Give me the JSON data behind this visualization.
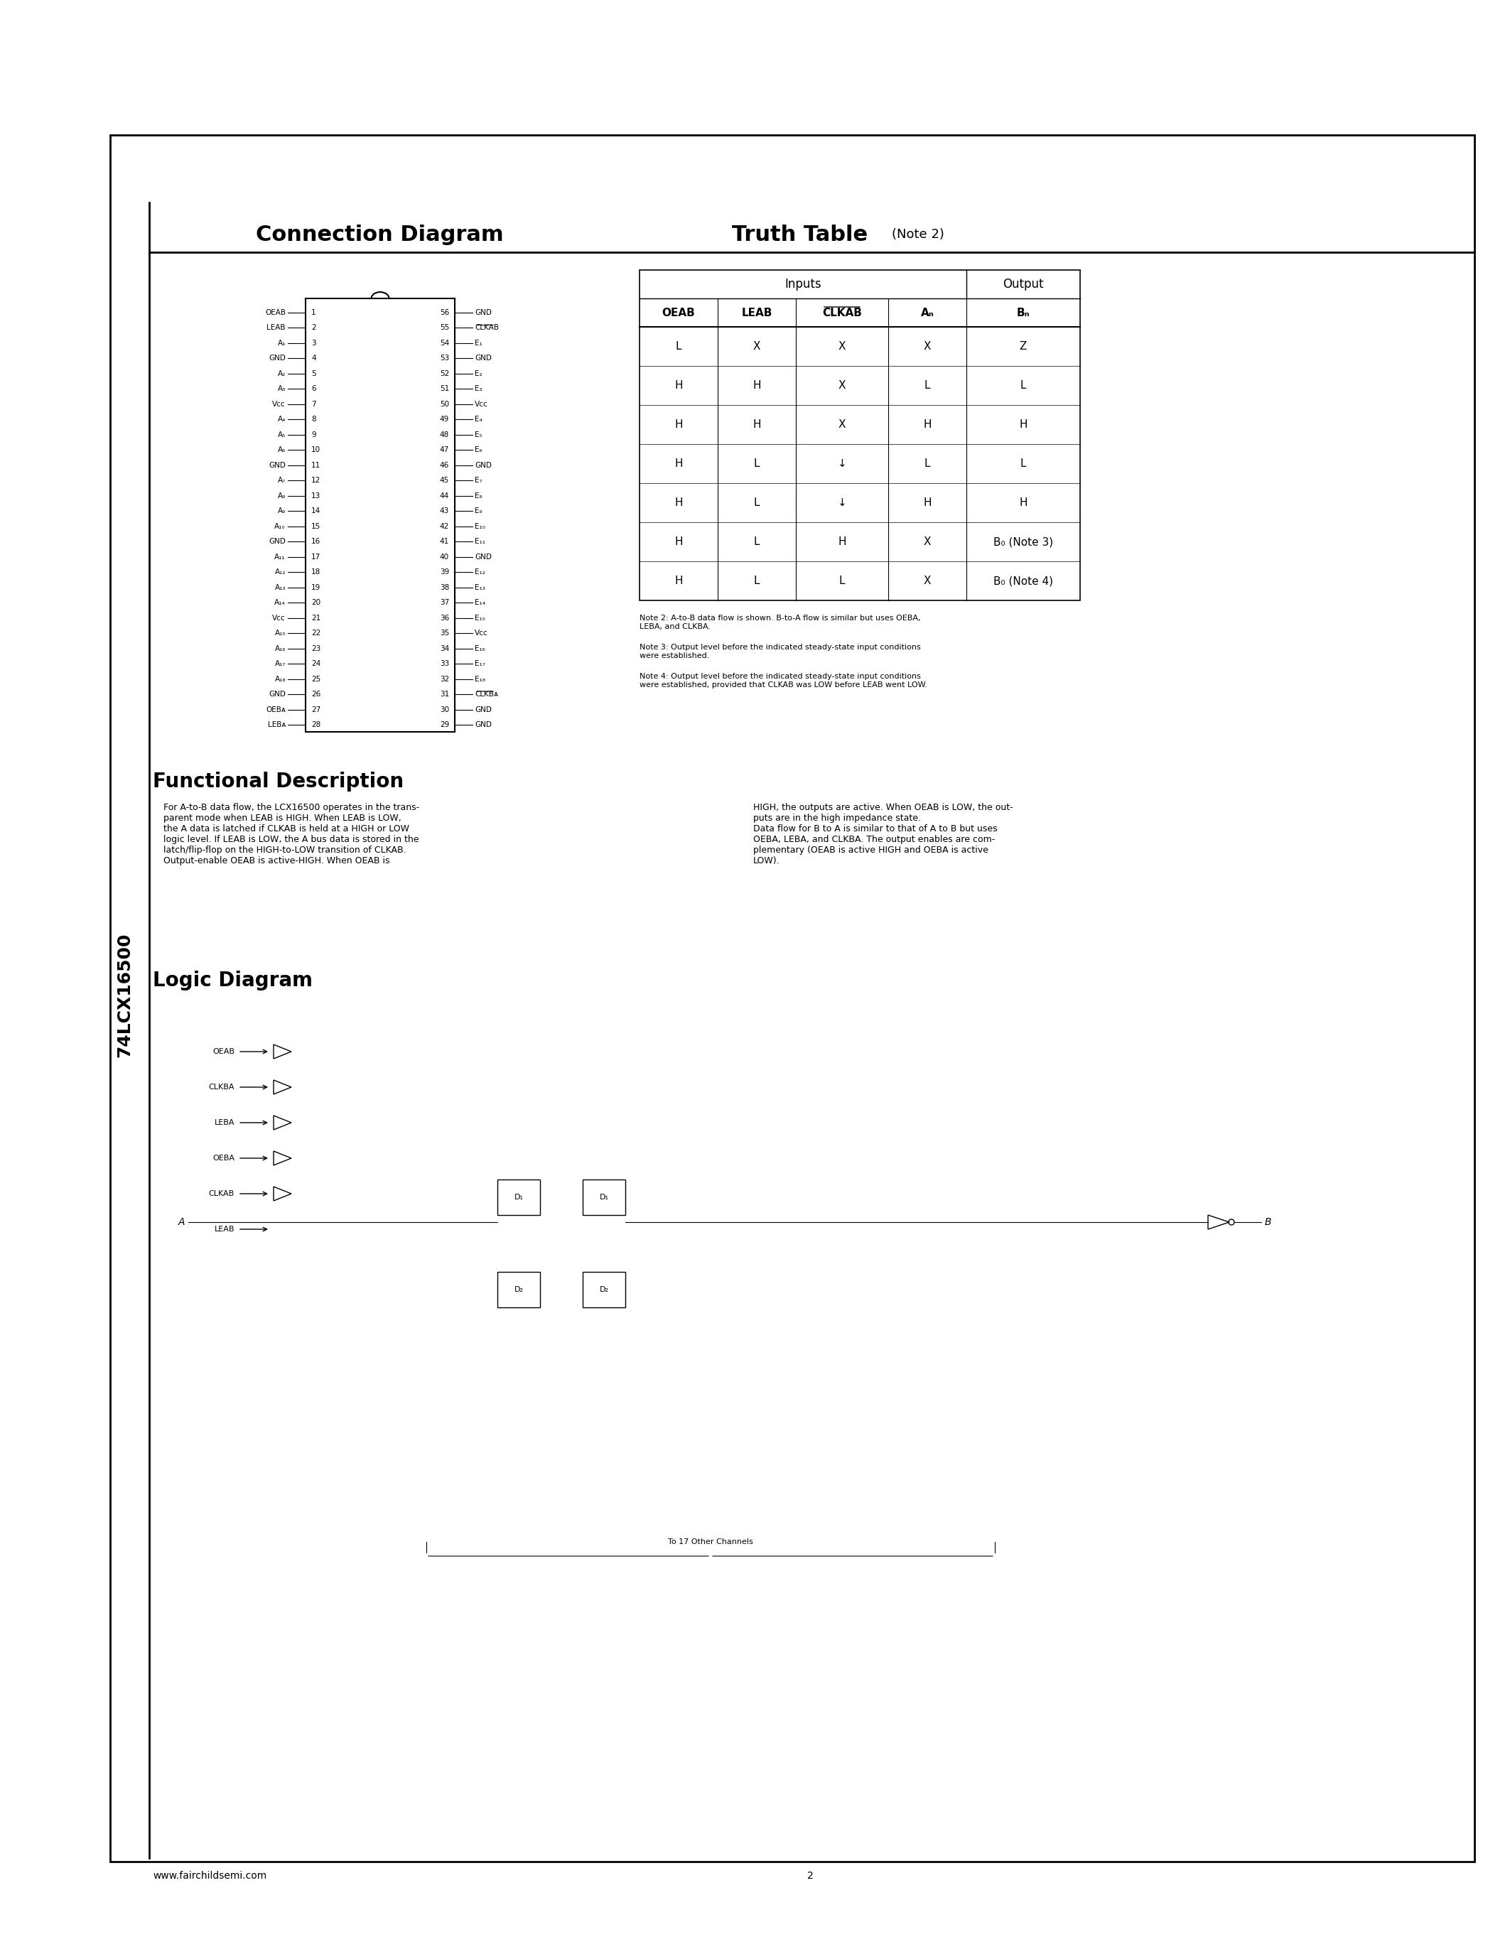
{
  "page_bg": "#ffffff",
  "border_color": "#000000",
  "title_part_number": "74LCX16500",
  "main_title": "Connection Diagram",
  "truth_table_title": "Truth Table",
  "truth_table_note": "(Note 2)",
  "functional_desc_title": "Functional Description",
  "logic_diagram_title": "Logic Diagram",
  "footer_url": "www.fairchildsemi.com",
  "footer_page": "2",
  "truth_table_headers_inputs": [
    "OEAB",
    "LEAB",
    "CLKAB",
    "Aₙ"
  ],
  "truth_table_header_output": "Bₙ",
  "truth_table_rows": [
    [
      "L",
      "X",
      "X",
      "X",
      "Z"
    ],
    [
      "H",
      "H",
      "X",
      "L",
      "L"
    ],
    [
      "H",
      "H",
      "X",
      "H",
      "H"
    ],
    [
      "H",
      "L",
      "↓",
      "L",
      "L"
    ],
    [
      "H",
      "L",
      "↓",
      "H",
      "H"
    ],
    [
      "H",
      "L",
      "H",
      "X",
      "B₀ (Note 3)"
    ],
    [
      "H",
      "L",
      "L",
      "X",
      "B₀ (Note 4)"
    ]
  ],
  "note2": "Note 2: A-to-B data flow is shown. B-to-A flow is similar but uses OEBA, LEBA, and CLKBA.",
  "note3": "Note 3: Output level before the indicated steady-state input conditions were established.",
  "note4": "Note 4: Output level before the indicated steady-state input conditions were established, provided that CLKAB was LOW before LEAB went LOW.",
  "functional_desc_text_left": "For A-to-B data flow, the LCX16500 operates in the transparent mode when LEAB is HIGH. When LEAB is LOW, the A data is latched if CLKAB is held at a HIGH or LOW logic level. If LEAB is LOW, the A bus data is stored in the latch/flip-flop on the HIGH-to-LOW transition of CLKAB. Output-enable OEAB is active-HIGH. When OEAB is",
  "functional_desc_text_right": "HIGH, the outputs are active. When OEAB is LOW, the outputs are in the high impedance state.\nData flow for B to A is similar to that of A to B but uses OEBA, LEBA, and CLKBA. The output enables are complementary (OEAB is active HIGH and OEBA is active LOW).",
  "connection_diagram_pins_left": [
    [
      "OEAB",
      "1"
    ],
    [
      "LEAB",
      "2"
    ],
    [
      "A₁",
      "3"
    ],
    [
      "GND",
      "4"
    ],
    [
      "A₂",
      "5"
    ],
    [
      "A₃",
      "6"
    ],
    [
      "Vᴄᴄ",
      "7"
    ],
    [
      "A₄",
      "8"
    ],
    [
      "A₅",
      "9"
    ],
    [
      "A₆",
      "10"
    ],
    [
      "GND",
      "11"
    ],
    [
      "A₇",
      "12"
    ],
    [
      "A₈",
      "13"
    ],
    [
      "A₉",
      "14"
    ],
    [
      "A₁₀",
      "15"
    ],
    [
      "GND",
      "16"
    ],
    [
      "A₁₁",
      "17"
    ],
    [
      "A₁₂",
      "18"
    ],
    [
      "A₁₃",
      "19"
    ],
    [
      "A₁₄",
      "20"
    ],
    [
      "Vᴄᴄ",
      "21"
    ],
    [
      "A₁₅",
      "22"
    ],
    [
      "A₁₆",
      "23"
    ],
    [
      "A₁₇",
      "24"
    ],
    [
      "A₁₈",
      "25"
    ],
    [
      "GND",
      "26"
    ],
    [
      "OEBᴀ",
      "27"
    ],
    [
      "LEBᴀ",
      "28"
    ]
  ],
  "connection_diagram_pins_right": [
    [
      "56",
      "GND"
    ],
    [
      "55",
      "CLKAB"
    ],
    [
      "54",
      "E₁"
    ],
    [
      "53",
      "GND"
    ],
    [
      "52",
      "E₂"
    ],
    [
      "51",
      "E₃"
    ],
    [
      "50",
      "Vᴄᴄ"
    ],
    [
      "49",
      "E₄"
    ],
    [
      "48",
      "E₅"
    ],
    [
      "47",
      "E₆"
    ],
    [
      "46",
      "GND"
    ],
    [
      "45",
      "E₇"
    ],
    [
      "44",
      "E₈"
    ],
    [
      "43",
      "E₉"
    ],
    [
      "42",
      "E₁₀"
    ],
    [
      "41",
      "E₁₁"
    ],
    [
      "40",
      "GND"
    ],
    [
      "39",
      "E₁₂"
    ],
    [
      "38",
      "E₁₃"
    ],
    [
      "37",
      "E₁₄"
    ],
    [
      "36",
      "E₁₅"
    ],
    [
      "35",
      "Vᴄᴄ"
    ],
    [
      "34",
      "E₁₆"
    ],
    [
      "33",
      "E₁₇"
    ],
    [
      "32",
      "E₁₈"
    ],
    [
      "31",
      "CLKBᴀ"
    ],
    [
      "30",
      "GND"
    ]
  ]
}
